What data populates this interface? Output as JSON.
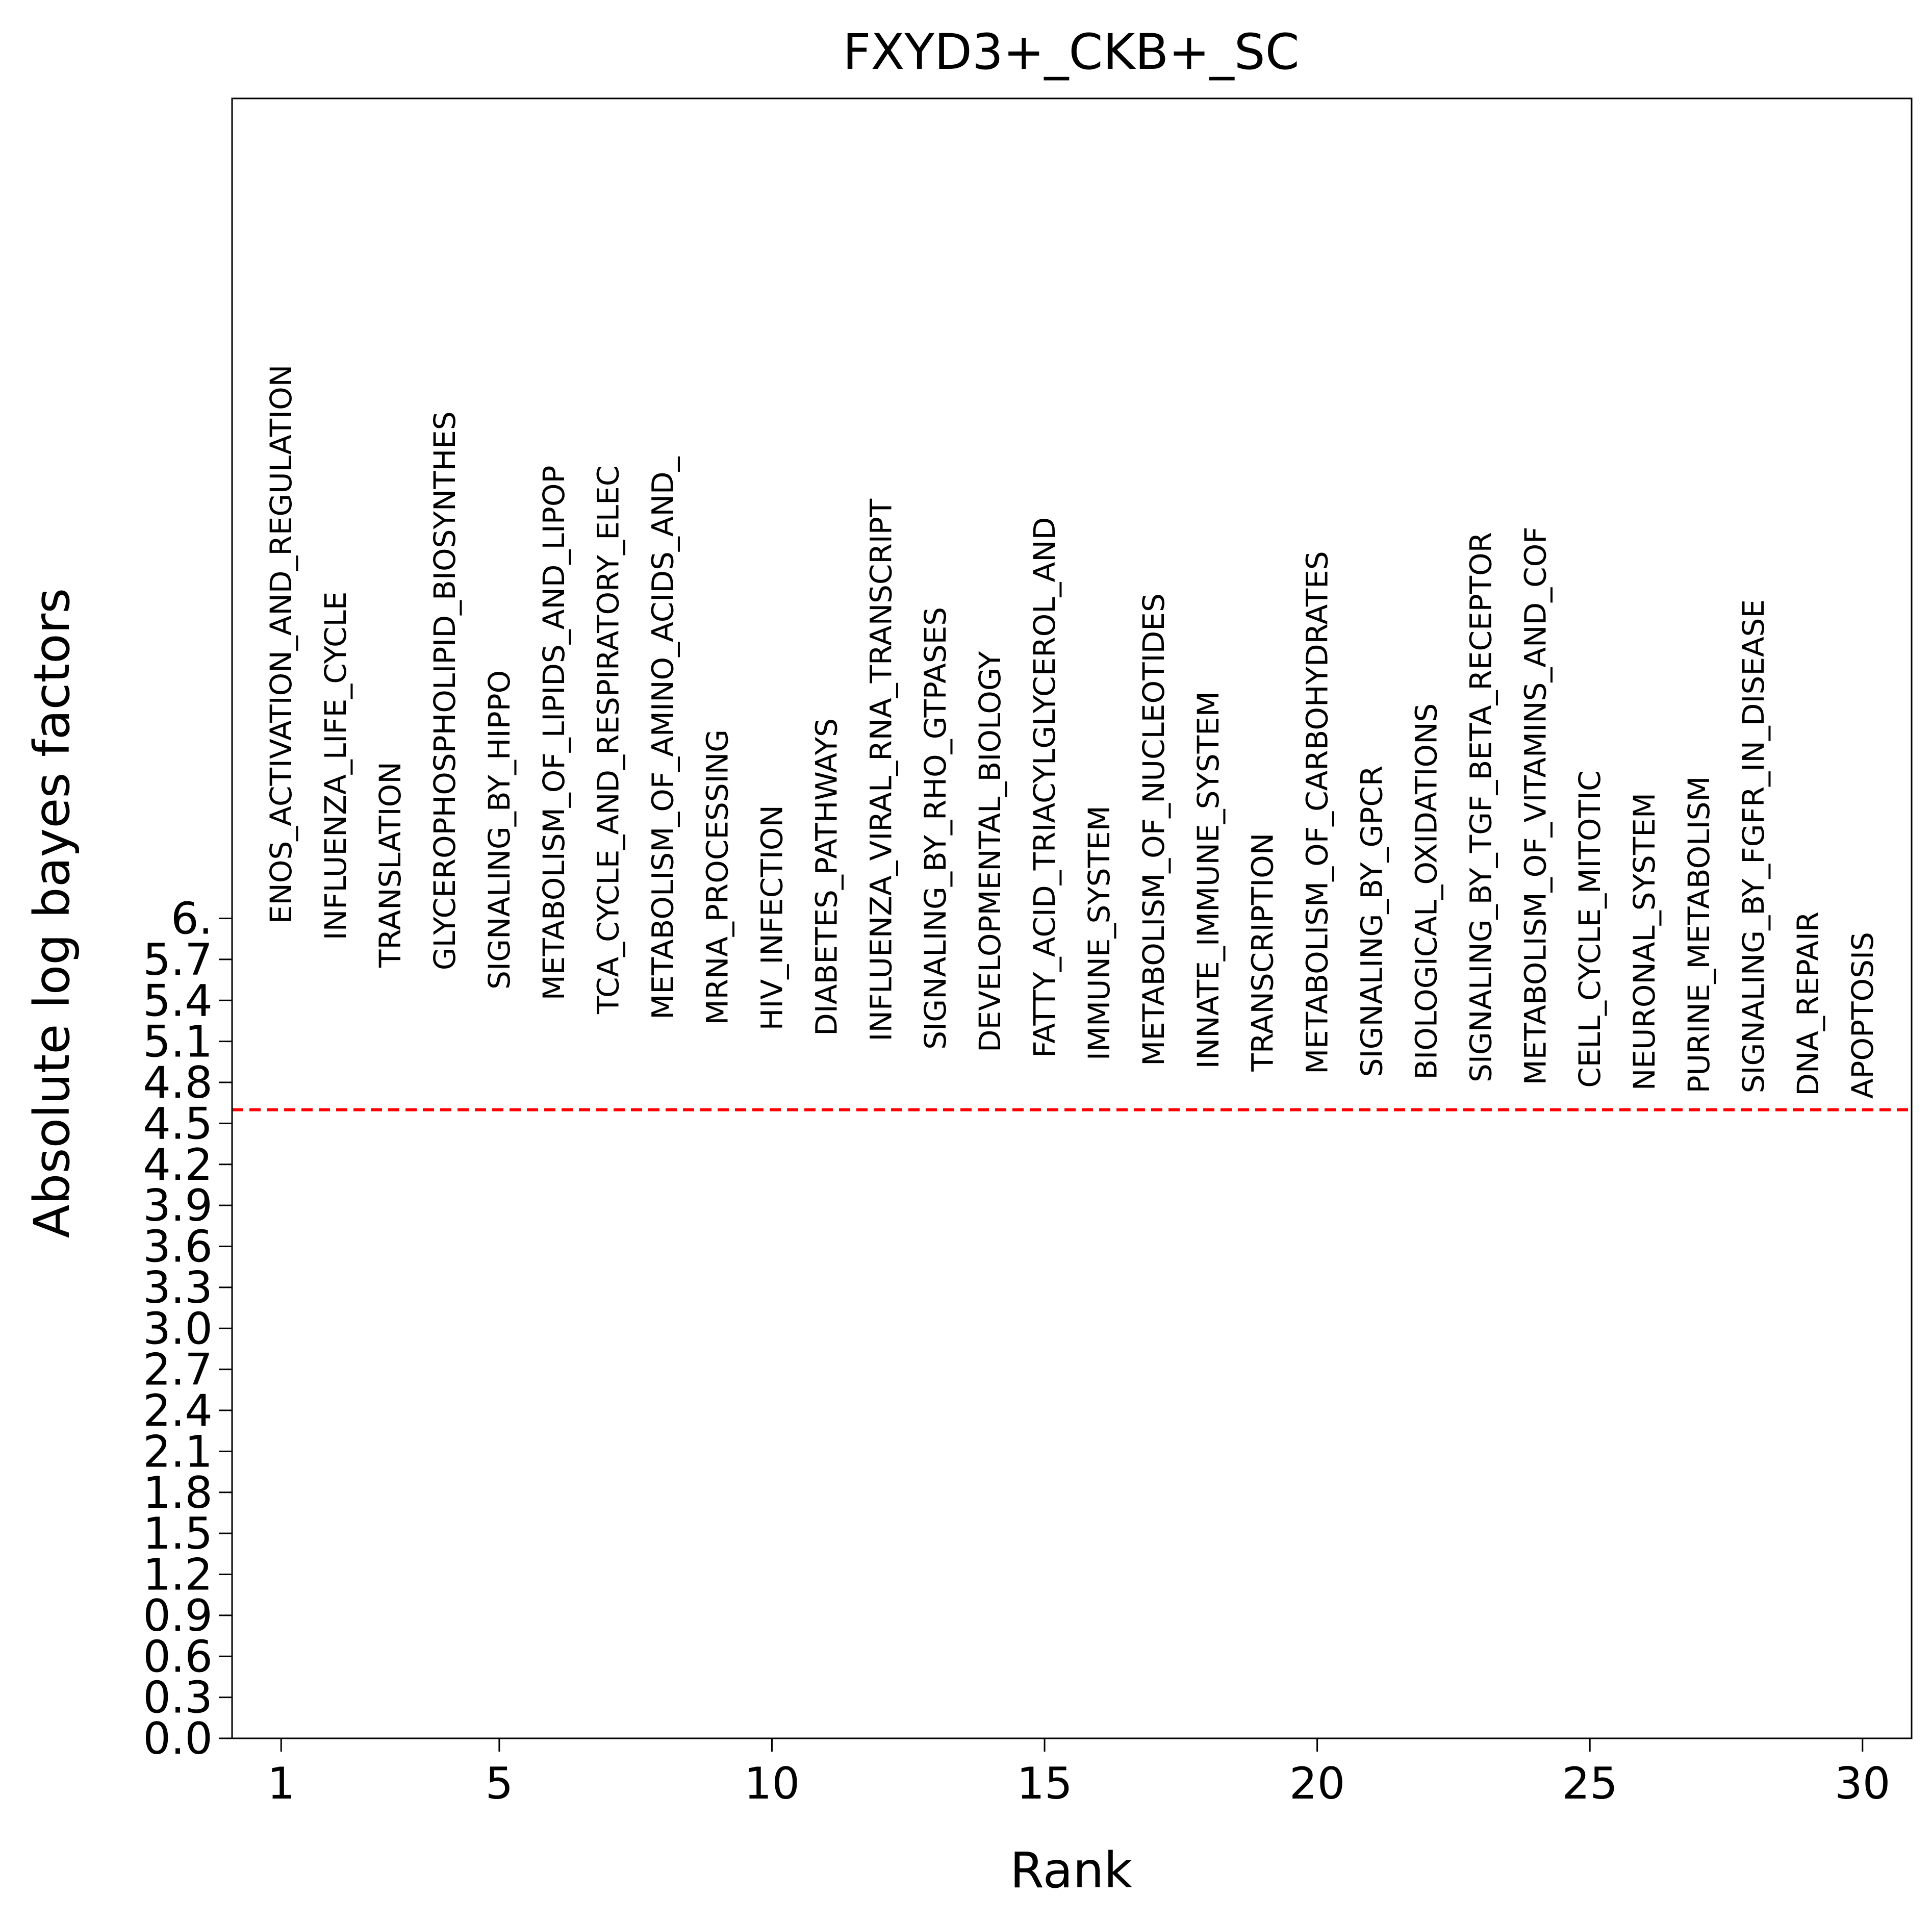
{
  "chart_data": {
    "type": "scatter",
    "title": "FXYD3+_CKB+_SC",
    "xlabel": "Rank",
    "ylabel": "Absolute log bayes factors",
    "xlim": [
      0.1,
      30.9
    ],
    "ylim": [
      0.0,
      6.0
    ],
    "x_ticks": [
      1,
      5,
      10,
      15,
      20,
      25,
      30
    ],
    "x_tick_labels": [
      "1",
      "5",
      "10",
      "15",
      "20",
      "25",
      "30"
    ],
    "y_ticks": [
      0.0,
      0.15,
      0.3,
      0.45,
      0.6,
      0.75,
      0.9,
      1.05,
      1.2,
      1.35,
      1.5,
      1.65,
      1.8,
      1.95,
      2.1,
      2.25,
      2.4,
      2.55,
      2.7,
      2.85,
      3.0,
      3.15,
      3.3,
      3.45,
      3.6,
      3.75,
      3.9,
      4.05,
      4.2,
      4.35,
      4.5,
      4.65,
      4.8,
      4.95,
      5.1,
      5.25,
      5.4,
      5.55,
      5.7,
      5.85,
      6.0
    ],
    "y_tick_labels": [
      "0.0",
      "0.3",
      "0.6",
      "0.9",
      "1.2",
      "1.5",
      "1.8",
      "2.1",
      "2.4",
      "2.7",
      "3.0",
      "3.3",
      "3.6",
      "3.9",
      "4.2",
      "4.5",
      "4.8",
      "5.1",
      "5.4",
      "5.7",
      "6."
    ],
    "threshold": 2.3,
    "threshold_color": "#ff0000",
    "points": [
      {
        "rank": 1,
        "value": 2.98,
        "label": "ENOS_ACTIVATION_AND_REGULATION"
      },
      {
        "rank": 2,
        "value": 2.92,
        "label": "INFLUENZA_LIFE_CYCLE"
      },
      {
        "rank": 3,
        "value": 2.82,
        "label": "TRANSLATION"
      },
      {
        "rank": 4,
        "value": 2.81,
        "label": "GLYCEROPHOSPHOLIPID_BIOSYNTHES"
      },
      {
        "rank": 5,
        "value": 2.74,
        "label": "SIGNALING_BY_HIPPO"
      },
      {
        "rank": 6,
        "value": 2.7,
        "label": "METABOLISM_OF_LIPIDS_AND_LIPOP"
      },
      {
        "rank": 7,
        "value": 2.65,
        "label": "TCA_CYCLE_AND_RESPIRATORY_ELEC"
      },
      {
        "rank": 8,
        "value": 2.63,
        "label": "METABOLISM_OF_AMINO_ACIDS_AND_"
      },
      {
        "rank": 9,
        "value": 2.61,
        "label": "MRNA_PROCESSING"
      },
      {
        "rank": 10,
        "value": 2.59,
        "label": "HIV_INFECTION"
      },
      {
        "rank": 11,
        "value": 2.57,
        "label": "DIABETES_PATHWAYS"
      },
      {
        "rank": 12,
        "value": 2.55,
        "label": "INFLUENZA_VIRAL_RNA_TRANSCRIPT"
      },
      {
        "rank": 13,
        "value": 2.52,
        "label": "SIGNALING_BY_RHO_GTPASES"
      },
      {
        "rank": 14,
        "value": 2.51,
        "label": "DEVELOPMENTAL_BIOLOGY"
      },
      {
        "rank": 15,
        "value": 2.49,
        "label": "FATTY_ACID_TRIACYLGLYCEROL_AND"
      },
      {
        "rank": 16,
        "value": 2.48,
        "label": "IMMUNE_SYSTEM"
      },
      {
        "rank": 17,
        "value": 2.46,
        "label": "METABOLISM_OF_NUCLEOTIDES"
      },
      {
        "rank": 18,
        "value": 2.45,
        "label": "INNATE_IMMUNE_SYSTEM"
      },
      {
        "rank": 19,
        "value": 2.44,
        "label": "TRANSCRIPTION"
      },
      {
        "rank": 20,
        "value": 2.43,
        "label": "METABOLISM_OF_CARBOHYDRATES"
      },
      {
        "rank": 21,
        "value": 2.42,
        "label": "SIGNALING_BY_GPCR"
      },
      {
        "rank": 22,
        "value": 2.41,
        "label": "BIOLOGICAL_OXIDATIONS"
      },
      {
        "rank": 23,
        "value": 2.4,
        "label": "SIGNALING_BY_TGF_BETA_RECEPTOR"
      },
      {
        "rank": 24,
        "value": 2.39,
        "label": "METABOLISM_OF_VITAMINS_AND_COF"
      },
      {
        "rank": 25,
        "value": 2.38,
        "label": "CELL_CYCLE_MITOTIC"
      },
      {
        "rank": 26,
        "value": 2.37,
        "label": "NEURONAL_SYSTEM"
      },
      {
        "rank": 27,
        "value": 2.36,
        "label": "PURINE_METABOLISM"
      },
      {
        "rank": 28,
        "value": 2.36,
        "label": "SIGNALING_BY_FGFR_IN_DISEASE"
      },
      {
        "rank": 29,
        "value": 2.35,
        "label": "DNA_REPAIR"
      },
      {
        "rank": 30,
        "value": 2.34,
        "label": "APOPTOSIS"
      }
    ]
  }
}
